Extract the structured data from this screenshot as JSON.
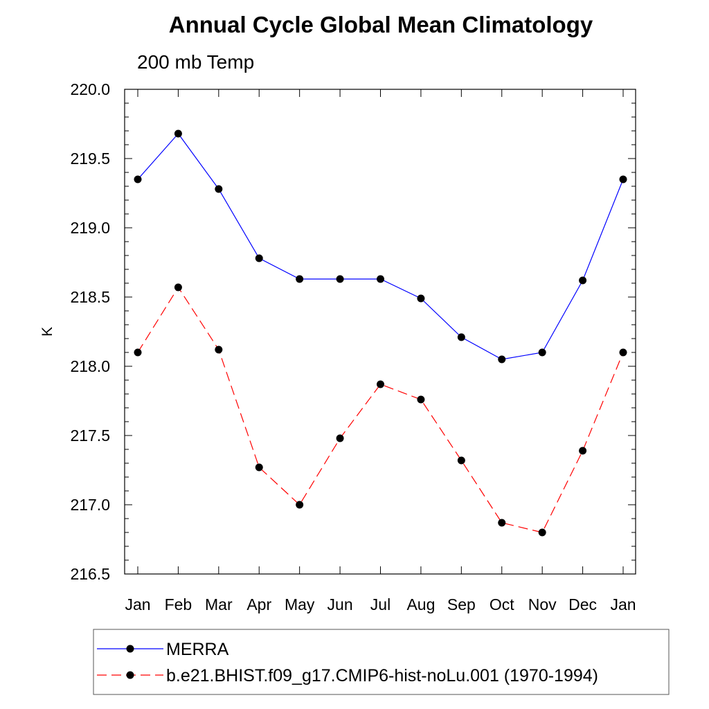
{
  "chart_data": {
    "type": "line",
    "title": "Annual Cycle Global Mean Climatology",
    "subtitle": "200 mb Temp",
    "xlabel": "",
    "ylabel": "K",
    "categories": [
      "Jan",
      "Feb",
      "Mar",
      "Apr",
      "May",
      "Jun",
      "Jul",
      "Aug",
      "Sep",
      "Oct",
      "Nov",
      "Dec",
      "Jan"
    ],
    "ylim": [
      216.5,
      220.0
    ],
    "yticks": [
      "216.5",
      "217.0",
      "217.5",
      "218.0",
      "218.5",
      "219.0",
      "219.5",
      "220.0"
    ],
    "series": [
      {
        "name": "MERRA",
        "color": "#0000ff",
        "dash": "solid",
        "values": [
          219.35,
          219.68,
          219.28,
          218.78,
          218.63,
          218.63,
          218.63,
          218.49,
          218.21,
          218.05,
          218.1,
          218.62,
          219.35
        ]
      },
      {
        "name": "b.e21.BHIST.f09_g17.CMIP6-hist-noLu.001 (1970-1994)",
        "color": "#ff0000",
        "dash": "dashed",
        "values": [
          218.1,
          218.57,
          218.12,
          217.27,
          217.0,
          217.48,
          217.87,
          217.76,
          217.32,
          216.87,
          216.8,
          217.39,
          218.1
        ]
      }
    ],
    "legend": "bottom",
    "grid": false
  }
}
